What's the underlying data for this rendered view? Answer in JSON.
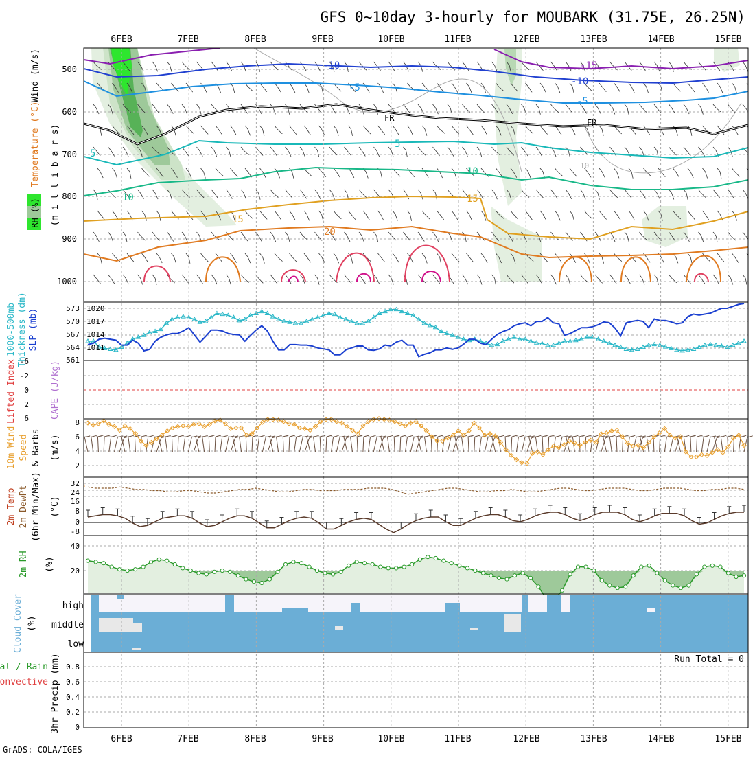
{
  "title": "GFS 0~10day 3-hourly for MOUBARK (31.75E, 26.25N)",
  "credit": "GrADS: COLA/IGES",
  "dates": [
    "6FEB",
    "7FEB",
    "8FEB",
    "9FEB",
    "10FEB",
    "11FEB",
    "12FEB",
    "13FEB",
    "14FEB",
    "15FEB"
  ],
  "colors": {
    "slp": "#1a3fd0",
    "thickness": "#2bb8c8",
    "wind_speed": "#e8a030",
    "rh_line": "#2a9a2a",
    "rh_fill_light": "#e3efe0",
    "rh_fill_dark": "#9ec99a",
    "cloud": "#6baed6",
    "cloud_clear": "#f6f4fa",
    "dewpoint": "#8b5a2b",
    "temp_line": "#5a3a2a",
    "li_zero": "#e04040"
  },
  "panels": {
    "upper": {
      "ylabel_wind": "Wind (m/s)",
      "ylabel_temp": "Temperature (°C)",
      "ylabel_rh": "RH (%)",
      "ylabel_mb": "(m i l l i b a r s)",
      "pressure_ticks": [
        "500",
        "600",
        "700",
        "800",
        "900",
        "1000"
      ],
      "contour_labels": {
        "m15": "-15",
        "m10": "-10",
        "m10b": "-10",
        "m5": "-5",
        "m5b": "-5",
        "fr1": "FR",
        "fr2": "FR",
        "p5": "5",
        "p5b": "5",
        "p10": "10",
        "p10b": "10",
        "p10c": "10",
        "p15": "15",
        "p15b": "15",
        "p20": "20"
      }
    },
    "slp": {
      "ylabel_thickness": "1000-500mb",
      "ylabel_thickness2": "Thickness (dm)",
      "ylabel_slp": "SLP (mb)",
      "thickness_ticks": [
        "573",
        "570",
        "567",
        "564",
        "561"
      ],
      "slp_ticks": [
        "1020",
        "1017",
        "1014",
        "1011"
      ]
    },
    "cape": {
      "ylabel_li": "Lifted Index",
      "ylabel_cape": "CAPE (J/kg)",
      "li_ticks": [
        "-6",
        "-4",
        "-2",
        "0",
        "2",
        "4",
        "6"
      ]
    },
    "wind10": {
      "ylabel1": "10m Wind",
      "ylabel2": "Speed",
      "ylabel3": "& Barbs",
      "ylabel4": "(m/s)",
      "ticks": [
        "8",
        "6",
        "4",
        "2"
      ]
    },
    "temp2m": {
      "ylabel1": "2m Temp",
      "ylabel2": "2m DewPt",
      "ylabel3": "(6hr Min/Max)",
      "ylabel4": "(°C)",
      "ticks": [
        "32",
        "24",
        "16",
        "8",
        "0",
        "-8"
      ]
    },
    "rh2m": {
      "ylabel1": "2m RH",
      "ylabel2": "(%)",
      "ticks": [
        "40",
        "20"
      ]
    },
    "cloud": {
      "ylabel1": "Cloud Cover",
      "ylabel2": "(%)",
      "levels": [
        "high",
        "middle",
        "low"
      ]
    },
    "precip": {
      "ylabel1": "Total / Rain",
      "ylabel2": "Convective",
      "ylabel3": "3hr Precip (mm)",
      "run_total": "Run Total = 0",
      "ticks": [
        "0.8",
        "0.6",
        "0.4",
        "0.2",
        "0"
      ]
    }
  },
  "chart_data": [
    {
      "type": "line",
      "title": "SLP and 1000-500mb Thickness",
      "ylabel": "SLP (mb) / Thickness (dm)",
      "x_step_hours": 3,
      "slp_ylim": [
        1009.5,
        1021
      ],
      "thickness_ylim": [
        560.5,
        574.5
      ],
      "series": [
        {
          "name": "SLP (mb)",
          "values": [
            1012.5,
            1012.8,
            1013.6,
            1013.8,
            1013.6,
            1013.4,
            1012.4,
            1012.4,
            1013.4,
            1012.8,
            1011.2,
            1011.5,
            1013.2,
            1014.0,
            1014.5,
            1014.8,
            1014.8,
            1015.3,
            1016.0,
            1014.5,
            1013.0,
            1014.2,
            1015.5,
            1015.5,
            1015.3,
            1014.8,
            1014.6,
            1014.5,
            1013.2,
            1014.4,
            1015.5,
            1016.4,
            1015.3,
            1013.2,
            1011.4,
            1011.4,
            1012.5,
            1012.5,
            1012.4,
            1012.4,
            1012.2,
            1011.8,
            1011.6,
            1011.4,
            1010.4,
            1010.4,
            1011.4,
            1011.8,
            1012.2,
            1012.2,
            1011.4,
            1011.3,
            1011.6,
            1012.4,
            1012.2,
            1013.0,
            1013.4,
            1012.4,
            1012.4,
            1010.0,
            1010.5,
            1010.8,
            1011.4,
            1011.4,
            1011.8,
            1011.5,
            1011.8,
            1012.6,
            1013.6,
            1013.6,
            1012.8,
            1012.5,
            1013.6,
            1014.6,
            1015.2,
            1015.6,
            1016.4,
            1016.8,
            1017.0,
            1016.4,
            1017.3,
            1017.3,
            1018.1,
            1017.0,
            1016.8,
            1014.4,
            1014.8,
            1015.4,
            1016.0,
            1016.0,
            1016.2,
            1016.6,
            1017.2,
            1017.0,
            1015.9,
            1014.3,
            1017.0,
            1017.3,
            1017.5,
            1017.3,
            1016.0,
            1017.8,
            1017.5,
            1017.5,
            1017.2,
            1016.8,
            1017.0,
            1018.3,
            1018.8,
            1018.6,
            1018.8,
            1019.0,
            1019.5,
            1020.0,
            1020.0,
            1020.4,
            1020.8,
            1021.0
          ]
        },
        {
          "name": "1000-500mb Thickness (dm)",
          "values": [
            565.0,
            565.0,
            563.6,
            563.2,
            563.0,
            562.8,
            563.5,
            564.5,
            565.5,
            566.0,
            566.5,
            567.2,
            567.5,
            568.0,
            569.5,
            570.5,
            571.0,
            571.2,
            571.0,
            570.5,
            569.8,
            570.0,
            571.0,
            572.0,
            571.8,
            571.5,
            571.0,
            570.2,
            570.5,
            571.5,
            572.0,
            572.5,
            572.0,
            571.2,
            570.5,
            570.0,
            569.8,
            569.5,
            569.5,
            570.0,
            570.5,
            571.0,
            571.5,
            572.0,
            571.8,
            571.0,
            570.5,
            570.0,
            569.5,
            569.5,
            570.0,
            571.0,
            572.0,
            572.5,
            573.0,
            573.0,
            572.5,
            572.0,
            571.5,
            570.5,
            569.5,
            569.0,
            568.5,
            567.5,
            567.0,
            566.5,
            566.0,
            565.5,
            565.2,
            565.5,
            565.0,
            564.5,
            564.0,
            564.2,
            565.0,
            565.5,
            566.0,
            565.5,
            565.5,
            565.0,
            564.6,
            564.4,
            564.0,
            564.0,
            564.5,
            565.0,
            565.0,
            565.2,
            565.5,
            566.0,
            566.0,
            565.5,
            565.0,
            564.5,
            564.0,
            563.5,
            563.0,
            562.8,
            563.0,
            563.5,
            564.0,
            564.2,
            564.0,
            563.6,
            563.2,
            562.8,
            562.6,
            562.8,
            563.0,
            563.5,
            564.0,
            564.2,
            564.0,
            563.8,
            563.5,
            564.0,
            564.5,
            565.0
          ]
        }
      ]
    },
    {
      "type": "line",
      "title": "10m Wind Speed",
      "ylabel": "Speed (m/s)",
      "ylim": [
        1,
        8.5
      ],
      "x_step_hours": 3,
      "series": [
        {
          "name": "10m Wind Speed",
          "values": [
            2.1,
            2.4,
            2.2,
            1.8,
            2.3,
            2.6,
            3.1,
            2.5,
            2.9,
            3.6,
            4.6,
            5.2,
            4.8,
            4.3,
            3.8,
            3.2,
            2.8,
            2.6,
            2.5,
            2.6,
            2.3,
            2.2,
            2.6,
            2.3,
            1.8,
            1.7,
            2.2,
            2.9,
            2.8,
            2.8,
            3.8,
            3.6,
            2.8,
            2.0,
            1.6,
            1.6,
            1.7,
            1.9,
            2.2,
            2.3,
            2.8,
            2.9,
            3.1,
            2.6,
            1.9,
            1.6,
            1.6,
            1.9,
            2.1,
            2.6,
            3.1,
            3.6,
            2.5,
            1.9,
            1.6,
            1.5,
            1.6,
            1.7,
            1.9,
            2.2,
            2.5,
            2.1,
            1.9,
            2.5,
            3.2,
            4.0,
            4.6,
            4.6,
            4.2,
            3.8,
            3.2,
            3.8,
            3.2,
            2.1,
            2.8,
            3.8,
            3.6,
            3.9,
            4.8,
            5.8,
            6.6,
            7.2,
            7.6,
            7.7,
            6.3,
            6.1,
            6.5,
            5.8,
            5.3,
            5.5,
            5.1,
            4.6,
            4.9,
            5.2,
            4.8,
            4.5,
            4.8,
            3.6,
            3.5,
            3.2,
            3.1,
            4.0,
            4.9,
            5.3,
            5.2,
            5.5,
            4.8,
            4.0,
            3.5,
            2.9,
            3.8,
            4.2,
            4.0,
            6.1,
            6.8,
            6.8,
            6.5,
            6.6,
            6.2,
            5.8,
            6.2,
            5.4,
            4.2,
            3.8,
            5.2
          ]
        }
      ]
    },
    {
      "type": "line",
      "title": "2m Temperature and Dew Point",
      "ylabel": "(°C)",
      "ylim": [
        -10,
        34
      ],
      "x_step_hours": 3,
      "series": [
        {
          "name": "2m Temp",
          "values": [
            20,
            19,
            18,
            18,
            19,
            21,
            25,
            28,
            27,
            24,
            21,
            20,
            19,
            19,
            21,
            25,
            28,
            27,
            24,
            21,
            19,
            19,
            21,
            25,
            29,
            29,
            26,
            23,
            21,
            20,
            21,
            25,
            30,
            30,
            27,
            24,
            22,
            21,
            22,
            26,
            30,
            33,
            30,
            26,
            23,
            21,
            20,
            20,
            24,
            27,
            27,
            24,
            21,
            19,
            18,
            18,
            20,
            23,
            24,
            22,
            19,
            17,
            16,
            16,
            18,
            21,
            23,
            21,
            18,
            16,
            16,
            16,
            18,
            22,
            24,
            22,
            19,
            17,
            17,
            17,
            19,
            23,
            26,
            25,
            22,
            19,
            17,
            16,
            16
          ]
        },
        {
          "name": "2m DewPt",
          "values": [
            -5,
            -4,
            -4,
            -4,
            -5,
            -4,
            -3,
            -3,
            -2,
            -2,
            -1,
            -1,
            -2,
            -2,
            -1,
            0,
            0,
            -1,
            -2,
            -3,
            -3,
            -4,
            -3,
            -2,
            -1,
            -1,
            -2,
            -3,
            -3,
            -2,
            -2,
            -2,
            -3,
            -3,
            -3,
            -4,
            -4,
            -4,
            -3,
            -1,
            1,
            0,
            -1,
            -2,
            -3,
            -4,
            -4,
            -3,
            -2,
            -1,
            -1,
            -2,
            -2,
            -3,
            -2,
            -1,
            -1,
            -2,
            -3,
            -4,
            -4,
            -3,
            -2,
            -2,
            -3,
            -4,
            -4,
            -4,
            -3,
            -2,
            -2,
            -3,
            -4,
            -4,
            -4,
            -3,
            -2,
            -2,
            -3,
            -3,
            -4,
            -4,
            -3
          ]
        }
      ]
    },
    {
      "type": "area",
      "title": "2m Relative Humidity",
      "ylabel": "(%)",
      "ylim": [
        2,
        46
      ],
      "x_step_hours": 6,
      "series": [
        {
          "name": "2m RH",
          "values": [
            12,
            13,
            14,
            17,
            19,
            20,
            19,
            17,
            13,
            11,
            12,
            15,
            18,
            20,
            22,
            23,
            21,
            20,
            21,
            24,
            27,
            29,
            30,
            27,
            21,
            15,
            13,
            14,
            17,
            20,
            22,
            23,
            21,
            16,
            13,
            14,
            15,
            17,
            18,
            18,
            17,
            15,
            11,
            9,
            10,
            12,
            14,
            16,
            18,
            20,
            22,
            24,
            26,
            27,
            24,
            22,
            26,
            33,
            43,
            44,
            36,
            23,
            17,
            17,
            20,
            28,
            32,
            34,
            33,
            24,
            17,
            16,
            22,
            28,
            32,
            34,
            32,
            23,
            17,
            16,
            17,
            22,
            25,
            24
          ]
        }
      ]
    }
  ]
}
